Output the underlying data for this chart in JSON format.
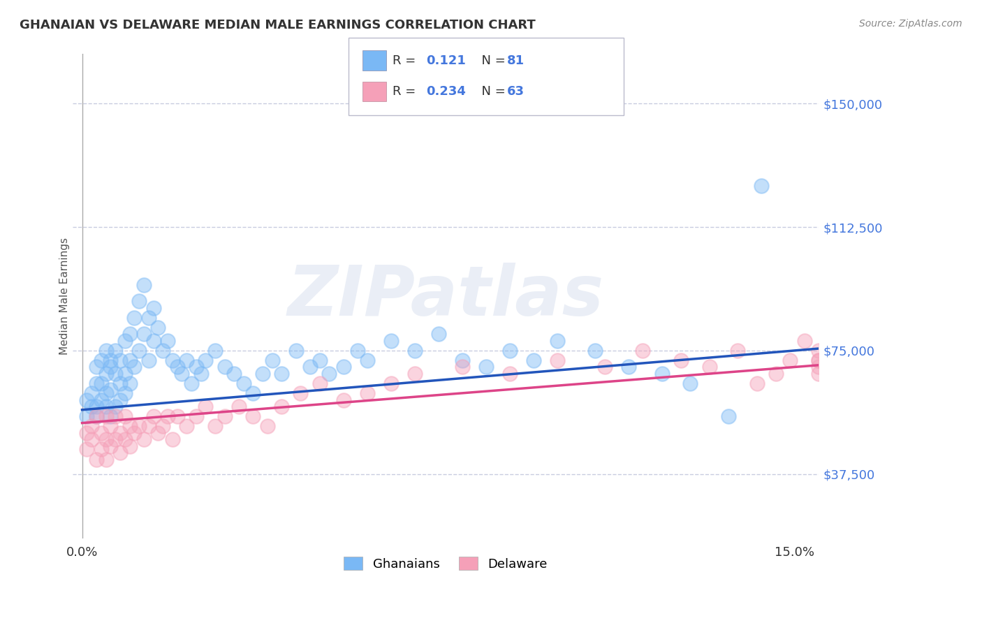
{
  "title": "GHANAIAN VS DELAWARE MEDIAN MALE EARNINGS CORRELATION CHART",
  "source": "Source: ZipAtlas.com",
  "ylabel": "Median Male Earnings",
  "xlim": [
    -0.002,
    0.155
  ],
  "ylim": [
    18000,
    165000
  ],
  "xticks": [
    0.0,
    0.15
  ],
  "xticklabels": [
    "0.0%",
    "15.0%"
  ],
  "yticks": [
    37500,
    75000,
    112500,
    150000
  ],
  "yticklabels": [
    "$37,500",
    "$75,000",
    "$112,500",
    "$150,000"
  ],
  "ghanaians_R": "0.121",
  "ghanaians_N": "81",
  "delaware_R": "0.234",
  "delaware_N": "63",
  "blue_color": "#7ab8f5",
  "pink_color": "#f5a0b8",
  "trend_blue": "#2255bb",
  "trend_pink": "#dd4488",
  "axis_color": "#4477dd",
  "watermark": "ZIPatlas",
  "background_color": "#ffffff",
  "grid_color": "#c8cce0",
  "ghanaians_x": [
    0.001,
    0.001,
    0.002,
    0.002,
    0.003,
    0.003,
    0.003,
    0.003,
    0.004,
    0.004,
    0.004,
    0.005,
    0.005,
    0.005,
    0.005,
    0.006,
    0.006,
    0.006,
    0.006,
    0.007,
    0.007,
    0.007,
    0.008,
    0.008,
    0.008,
    0.009,
    0.009,
    0.009,
    0.01,
    0.01,
    0.01,
    0.011,
    0.011,
    0.012,
    0.012,
    0.013,
    0.013,
    0.014,
    0.014,
    0.015,
    0.015,
    0.016,
    0.017,
    0.018,
    0.019,
    0.02,
    0.021,
    0.022,
    0.023,
    0.024,
    0.025,
    0.026,
    0.028,
    0.03,
    0.032,
    0.034,
    0.036,
    0.038,
    0.04,
    0.042,
    0.045,
    0.048,
    0.05,
    0.052,
    0.055,
    0.058,
    0.06,
    0.065,
    0.07,
    0.075,
    0.08,
    0.085,
    0.09,
    0.095,
    0.1,
    0.108,
    0.115,
    0.122,
    0.128,
    0.136,
    0.143
  ],
  "ghanaians_y": [
    60000,
    55000,
    58000,
    62000,
    65000,
    55000,
    70000,
    58000,
    72000,
    60000,
    65000,
    75000,
    62000,
    68000,
    58000,
    70000,
    63000,
    55000,
    72000,
    68000,
    75000,
    58000,
    72000,
    65000,
    60000,
    78000,
    68000,
    62000,
    80000,
    72000,
    65000,
    85000,
    70000,
    90000,
    75000,
    95000,
    80000,
    85000,
    72000,
    88000,
    78000,
    82000,
    75000,
    78000,
    72000,
    70000,
    68000,
    72000,
    65000,
    70000,
    68000,
    72000,
    75000,
    70000,
    68000,
    65000,
    62000,
    68000,
    72000,
    68000,
    75000,
    70000,
    72000,
    68000,
    70000,
    75000,
    72000,
    78000,
    75000,
    80000,
    72000,
    70000,
    75000,
    72000,
    78000,
    75000,
    70000,
    68000,
    65000,
    55000,
    125000
  ],
  "delaware_x": [
    0.001,
    0.001,
    0.002,
    0.002,
    0.003,
    0.003,
    0.004,
    0.004,
    0.005,
    0.005,
    0.005,
    0.006,
    0.006,
    0.007,
    0.007,
    0.008,
    0.008,
    0.009,
    0.009,
    0.01,
    0.01,
    0.011,
    0.012,
    0.013,
    0.014,
    0.015,
    0.016,
    0.017,
    0.018,
    0.019,
    0.02,
    0.022,
    0.024,
    0.026,
    0.028,
    0.03,
    0.033,
    0.036,
    0.039,
    0.042,
    0.046,
    0.05,
    0.055,
    0.06,
    0.065,
    0.07,
    0.08,
    0.09,
    0.1,
    0.11,
    0.118,
    0.126,
    0.132,
    0.138,
    0.142,
    0.146,
    0.149,
    0.152,
    0.155,
    0.155,
    0.155,
    0.155,
    0.155
  ],
  "delaware_y": [
    50000,
    45000,
    52000,
    48000,
    55000,
    42000,
    50000,
    45000,
    55000,
    48000,
    42000,
    52000,
    46000,
    55000,
    48000,
    50000,
    44000,
    55000,
    48000,
    52000,
    46000,
    50000,
    52000,
    48000,
    52000,
    55000,
    50000,
    52000,
    55000,
    48000,
    55000,
    52000,
    55000,
    58000,
    52000,
    55000,
    58000,
    55000,
    52000,
    58000,
    62000,
    65000,
    60000,
    62000,
    65000,
    68000,
    70000,
    68000,
    72000,
    70000,
    75000,
    72000,
    70000,
    75000,
    65000,
    68000,
    72000,
    78000,
    75000,
    72000,
    68000,
    72000,
    70000
  ]
}
